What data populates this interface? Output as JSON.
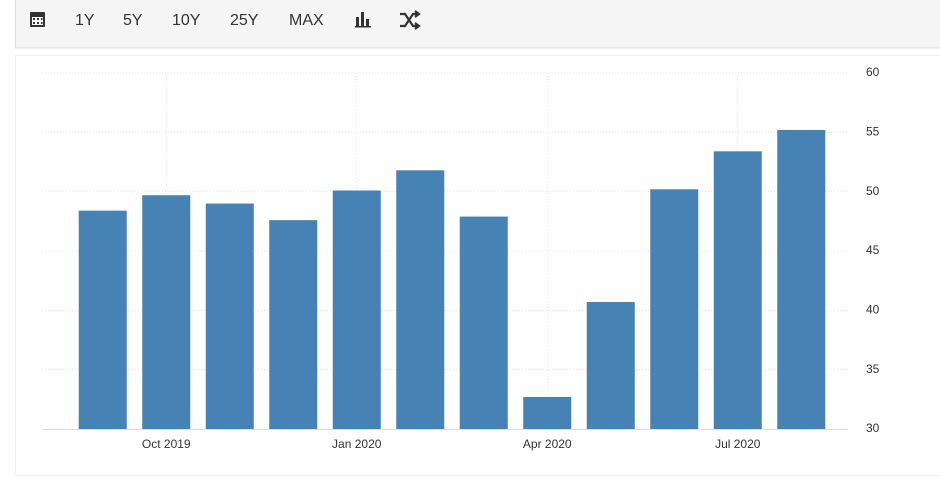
{
  "toolbar": {
    "buttons": [
      "1Y",
      "5Y",
      "10Y",
      "25Y",
      "MAX"
    ]
  },
  "chart_data": {
    "type": "bar",
    "categories": [
      null,
      "Oct 2019",
      null,
      null,
      "Jan 2020",
      null,
      null,
      "Apr 2020",
      null,
      null,
      "Jul 2020",
      null
    ],
    "values": [
      48.4,
      49.7,
      49.0,
      47.6,
      50.1,
      51.8,
      47.9,
      32.7,
      40.7,
      50.2,
      53.4,
      55.2
    ],
    "color": "#4682b4",
    "ylim": [
      30,
      60
    ],
    "yticks": [
      30,
      35,
      40,
      45,
      50,
      55,
      60
    ],
    "grid": true
  }
}
